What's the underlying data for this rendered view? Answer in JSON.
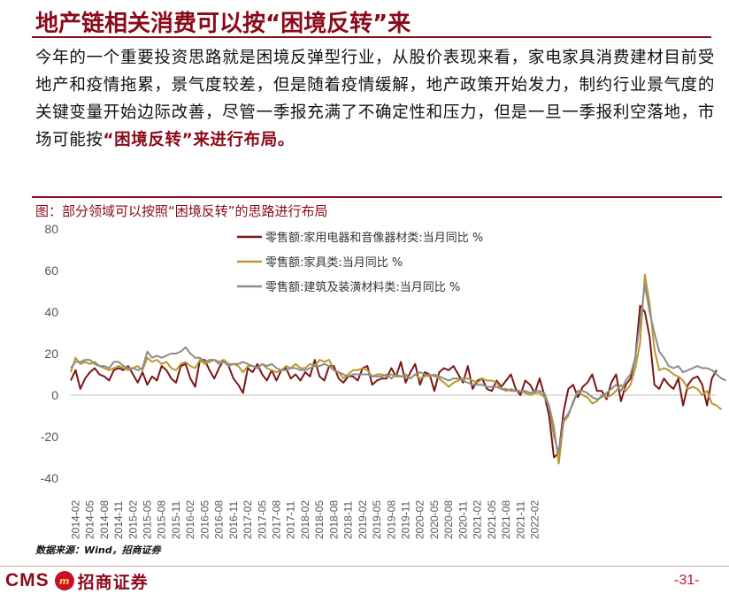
{
  "page": {
    "title": "地产链相关消费可以按“困境反转”来",
    "paragraph_plain": "今年的一个重要投资思路就是困境反弹型行业，从股价表现来看，家电家具消费建材目前受地产和疫情拖累，景气度较差，但是随着疫情缓解，地产政策开始发力，制约行业景气度的关键变量开始边际改善，尽管一季报充满了不确定性和压力，但是一旦一季报利空落地，市场可能按",
    "paragraph_highlight": "“困境反转”来进行布局。",
    "figure_title": "图：部分领域可以按照“困境反转”的思路进行布局",
    "source": "数据来源：Wind，招商证券",
    "page_number": "-31-"
  },
  "logo": {
    "cms": "CMS",
    "badge": "m",
    "cn": "招商证券"
  },
  "colors": {
    "accent": "#8b0a1a",
    "series1": "#7b1616",
    "series2": "#b8992e",
    "series3": "#8c8c8c"
  },
  "chart_data": {
    "type": "line",
    "title": "",
    "xlabel": "",
    "ylabel": "",
    "ylim": [
      -40,
      80
    ],
    "yticks": [
      80,
      60,
      40,
      20,
      0,
      -20,
      -40
    ],
    "x_ticks": [
      "2014-02",
      "2014-05",
      "2014-08",
      "2014-11",
      "2015-02",
      "2015-05",
      "2015-08",
      "2015-11",
      "2016-02",
      "2016-05",
      "2016-08",
      "2016-11",
      "2017-02",
      "2017-05",
      "2017-08",
      "2017-11",
      "2018-02",
      "2018-05",
      "2018-08",
      "2018-11",
      "2019-02",
      "2019-05",
      "2019-08",
      "2019-11",
      "2020-02",
      "2020-05",
      "2020-08",
      "2020-11",
      "2021-02",
      "2021-05",
      "2021-08",
      "2021-11",
      "2022-02"
    ],
    "grid": false,
    "legend_position": "top-left",
    "series": [
      {
        "name": "零售额:家用电器和音像器材类:当月同比 %",
        "values": [
          7,
          12,
          3,
          8,
          11,
          13,
          10,
          9,
          7,
          12,
          13,
          12,
          14,
          10,
          6,
          11,
          5,
          9,
          7,
          14,
          12,
          8,
          6,
          14,
          15,
          8,
          4,
          17,
          17,
          12,
          8,
          13,
          17,
          14,
          8,
          5,
          1,
          13,
          11,
          15,
          10,
          7,
          12,
          7,
          12,
          13,
          8,
          10,
          7,
          11,
          9,
          17,
          9,
          7,
          14,
          14,
          8,
          6,
          9,
          9,
          7,
          13,
          14,
          5,
          7,
          8,
          8,
          13,
          9,
          16,
          6,
          11,
          15,
          5,
          11,
          10,
          2,
          11,
          13,
          12,
          14,
          10,
          6,
          14,
          3,
          7,
          8,
          3,
          2,
          7,
          4,
          7,
          10,
          3,
          0,
          7,
          5,
          1,
          8,
          0,
          -10,
          -30,
          -28,
          -8,
          3,
          5,
          -1,
          4,
          6,
          10,
          2,
          2,
          -2,
          6,
          10,
          -3,
          5,
          8,
          18,
          43,
          40,
          28,
          5,
          3,
          8,
          5,
          3,
          8,
          -5,
          5,
          8,
          9,
          5,
          -5,
          8,
          12
        ]
      },
      {
        "name": "零售额:家具类:当月同比 %",
        "values": [
          11,
          18,
          15,
          16,
          15,
          16,
          14,
          13,
          12,
          13,
          14,
          13,
          12,
          13,
          14,
          12,
          18,
          16,
          17,
          15,
          16,
          13,
          12,
          15,
          16,
          14,
          13,
          17,
          15,
          16,
          17,
          16,
          17,
          15,
          15,
          14,
          11,
          14,
          14,
          13,
          15,
          13,
          12,
          11,
          12,
          14,
          13,
          15,
          13,
          13,
          15,
          14,
          17,
          16,
          17,
          12,
          11,
          8,
          10,
          12,
          12,
          13,
          12,
          9,
          10,
          10,
          9,
          10,
          9,
          9,
          9,
          8,
          10,
          8,
          9,
          10,
          9,
          8,
          6,
          4,
          6,
          7,
          8,
          8,
          7,
          6,
          8,
          7,
          7,
          6,
          3,
          2,
          3,
          2,
          2,
          1,
          0,
          1,
          1,
          -1,
          -5,
          -15,
          -33,
          -13,
          -10,
          -3,
          2,
          0,
          -1,
          -4,
          -3,
          0,
          -1,
          0,
          2,
          5,
          2,
          5,
          13,
          25,
          58,
          44,
          22,
          12,
          13,
          12,
          10,
          9,
          7,
          3,
          4,
          3,
          0,
          2,
          -4,
          -5,
          -7
        ]
      },
      {
        "name": "零售额:建筑及装潢材料类:当月同比 %",
        "values": [
          13,
          16,
          16,
          17,
          17,
          15,
          14,
          14,
          13,
          16,
          16,
          14,
          13,
          13,
          12,
          13,
          21,
          18,
          19,
          18,
          19,
          20,
          20,
          21,
          23,
          20,
          18,
          18,
          16,
          17,
          17,
          15,
          16,
          14,
          15,
          15,
          16,
          15,
          14,
          13,
          15,
          14,
          15,
          13,
          12,
          12,
          13,
          13,
          12,
          12,
          13,
          14,
          14,
          15,
          14,
          12,
          11,
          10,
          9,
          10,
          10,
          10,
          10,
          9,
          9,
          9,
          10,
          8,
          10,
          9,
          10,
          8,
          10,
          11,
          10,
          9,
          10,
          9,
          8,
          7,
          8,
          8,
          7,
          6,
          5,
          5,
          5,
          4,
          4,
          4,
          3,
          3,
          2,
          2,
          2,
          2,
          1,
          2,
          2,
          1,
          -5,
          -20,
          -28,
          -12,
          -9,
          -4,
          2,
          2,
          1,
          -1,
          -2,
          -1,
          1,
          3,
          5,
          2,
          7,
          10,
          18,
          35,
          53,
          40,
          30,
          21,
          18,
          14,
          13,
          14,
          11,
          12,
          13,
          14,
          13,
          13,
          12,
          10,
          8,
          7
        ]
      }
    ]
  }
}
